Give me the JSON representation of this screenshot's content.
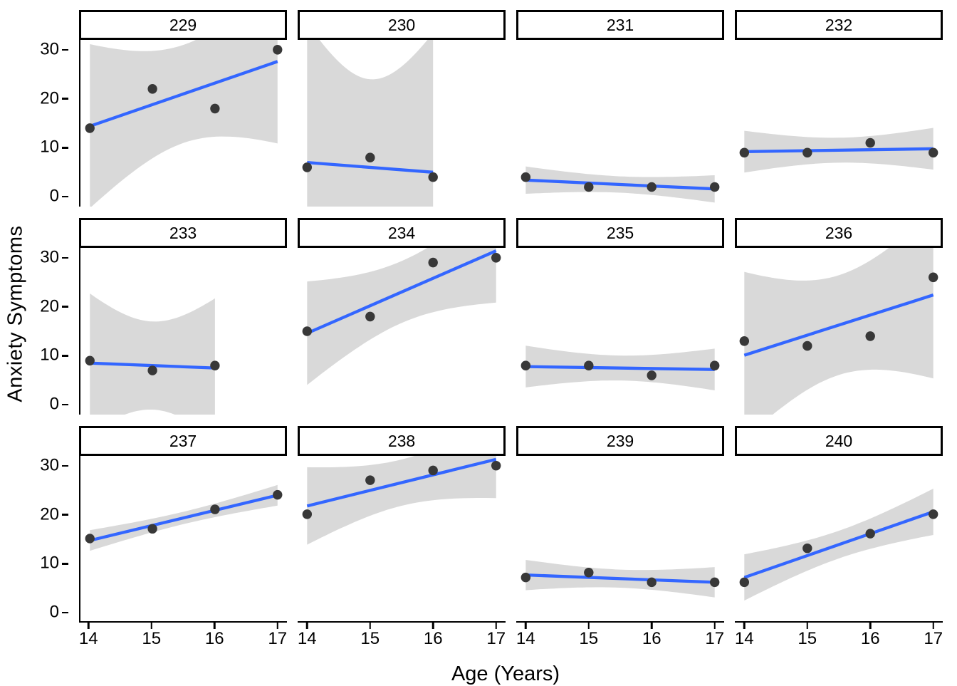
{
  "figure": {
    "x_axis_title": "Age (Years)",
    "y_axis_title": "Anxiety Symptoms"
  },
  "chart_data": {
    "type": "scatter",
    "title": "",
    "xlabel": "Age (Years)",
    "ylabel": "Anxiety Symptoms",
    "facet_variable": "participant id",
    "smoother": "linear regression with 95% confidence ribbon",
    "grid": "off",
    "legend": "none",
    "xlim": [
      13.85,
      17.15
    ],
    "ylim": [
      -2,
      32
    ],
    "x_ticks": [
      14,
      15,
      16,
      17
    ],
    "y_ticks": [
      0,
      10,
      20,
      30
    ],
    "colors": {
      "line": "#3366FF",
      "ribbon": "#D9D9D9",
      "point": "#383838",
      "axis": "#000000",
      "strip_border": "#000000",
      "strip_fill": "#FFFFFF"
    },
    "facets": [
      {
        "label": "229",
        "x": [
          14,
          15,
          16,
          17
        ],
        "y": [
          14,
          22,
          18,
          30
        ]
      },
      {
        "label": "230",
        "x": [
          14,
          15,
          16
        ],
        "y": [
          6,
          8,
          4
        ]
      },
      {
        "label": "231",
        "x": [
          14,
          15,
          16,
          17
        ],
        "y": [
          4,
          2,
          2,
          2
        ]
      },
      {
        "label": "232",
        "x": [
          14,
          15,
          16,
          17
        ],
        "y": [
          9,
          9,
          11,
          9
        ]
      },
      {
        "label": "233",
        "x": [
          14,
          15,
          16
        ],
        "y": [
          9,
          7,
          8
        ]
      },
      {
        "label": "234",
        "x": [
          14,
          15,
          16,
          17
        ],
        "y": [
          15,
          18,
          29,
          30
        ]
      },
      {
        "label": "235",
        "x": [
          14,
          15,
          16,
          17
        ],
        "y": [
          8,
          8,
          6,
          8
        ]
      },
      {
        "label": "236",
        "x": [
          14,
          15,
          16,
          17
        ],
        "y": [
          13,
          12,
          14,
          26
        ]
      },
      {
        "label": "237",
        "x": [
          14,
          15,
          16,
          17
        ],
        "y": [
          15,
          17,
          21,
          24
        ]
      },
      {
        "label": "238",
        "x": [
          14,
          15,
          16,
          17
        ],
        "y": [
          20,
          27,
          29,
          30
        ]
      },
      {
        "label": "239",
        "x": [
          14,
          15,
          16,
          17
        ],
        "y": [
          7,
          8,
          6,
          6
        ]
      },
      {
        "label": "240",
        "x": [
          14,
          15,
          16,
          17
        ],
        "y": [
          6,
          13,
          16,
          20
        ]
      }
    ]
  }
}
